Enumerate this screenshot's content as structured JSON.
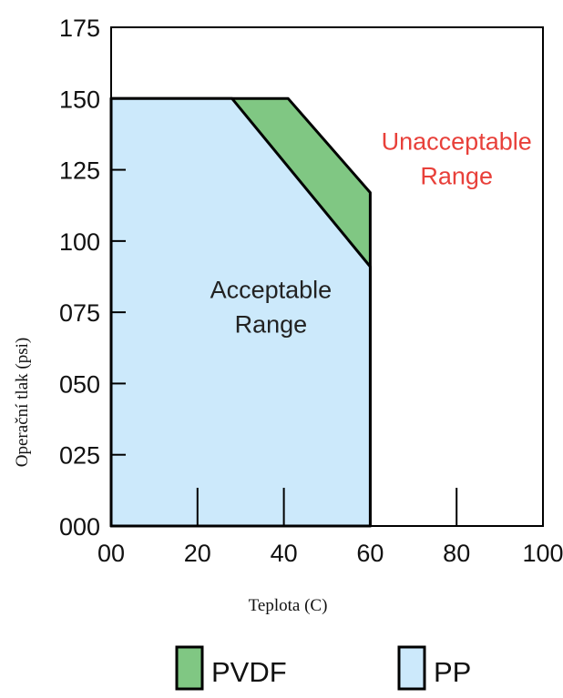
{
  "chart_data": {
    "type": "area",
    "title": "",
    "xlabel": "Teplota (C)",
    "ylabel": "Operační tlak (psi)",
    "xlim": [
      0,
      100
    ],
    "ylim": [
      0,
      175
    ],
    "x_ticks": [
      0,
      20,
      40,
      60,
      80,
      100
    ],
    "x_tick_labels": [
      "00",
      "20",
      "40",
      "60",
      "80",
      "100"
    ],
    "y_ticks": [
      0,
      25,
      50,
      75,
      100,
      125,
      150,
      175
    ],
    "y_tick_labels": [
      "000",
      "025",
      "050",
      "075",
      "100",
      "125",
      "150",
      "175"
    ],
    "grid": false,
    "series": [
      {
        "name": "PVDF",
        "color": "#80c783",
        "points": [
          [
            0,
            0
          ],
          [
            0,
            150
          ],
          [
            41,
            150
          ],
          [
            60,
            117
          ],
          [
            60,
            0
          ]
        ]
      },
      {
        "name": "PP",
        "color": "#cce9fb",
        "points": [
          [
            0,
            0
          ],
          [
            0,
            150
          ],
          [
            28,
            150
          ],
          [
            60,
            91
          ],
          [
            60,
            0
          ]
        ]
      }
    ],
    "annotations": [
      {
        "text_lines": [
          "Acceptable",
          "Range"
        ],
        "x": 37,
        "y": 80,
        "color": "#222222"
      },
      {
        "text_lines": [
          "Unacceptable",
          "Range"
        ],
        "x": 80,
        "y": 132,
        "color": "#e8403a"
      }
    ],
    "legend": {
      "placement": "bottom",
      "items": [
        {
          "label": "PVDF",
          "color": "#80c783"
        },
        {
          "label": "PP",
          "color": "#cce9fb"
        }
      ]
    }
  }
}
